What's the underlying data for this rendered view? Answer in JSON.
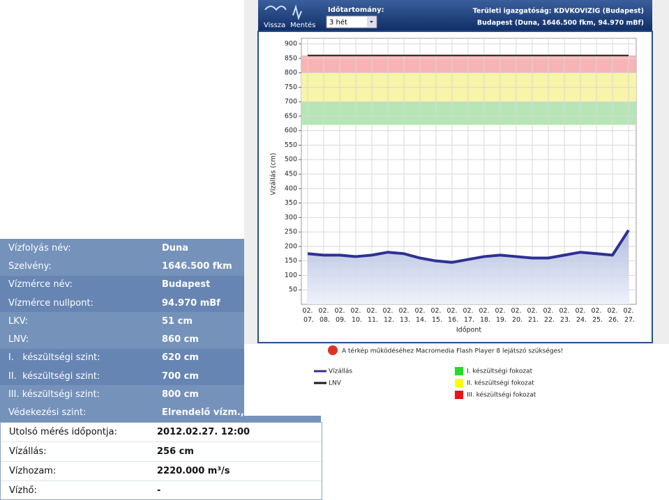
{
  "toolbar": {
    "back": "Vissza",
    "save": "Mentés",
    "range_label": "Időtartomány:",
    "range_value": "3 hét",
    "directorate": "Területi igazgatóság: KDVKOVIZIG (Budapest)",
    "station": "Budapest (Duna, 1646.500 fkm, 94.970 mBf)"
  },
  "chart_data": {
    "type": "line",
    "y_label": "Vízállás (cm)",
    "x_label": "Időpont",
    "categories": [
      "02. 07.",
      "02. 08.",
      "02. 09.",
      "02. 10.",
      "02. 11.",
      "02. 12.",
      "02. 13.",
      "02. 14.",
      "02. 15.",
      "02. 16.",
      "02. 17.",
      "02. 18.",
      "02. 19.",
      "02. 20.",
      "02. 21.",
      "02. 22.",
      "02. 23.",
      "02. 24.",
      "02. 25.",
      "02. 26.",
      "02. 27."
    ],
    "series": [
      {
        "name": "Vízállás",
        "color": "#2e3192",
        "values": [
          175,
          170,
          170,
          165,
          170,
          180,
          175,
          160,
          150,
          145,
          155,
          165,
          170,
          165,
          160,
          160,
          170,
          180,
          175,
          170,
          256
        ]
      },
      {
        "name": "LNV",
        "color": "#1a1a1a",
        "values": [
          860,
          860,
          860,
          860,
          860,
          860,
          860,
          860,
          860,
          860,
          860,
          860,
          860,
          860,
          860,
          860,
          860,
          860,
          860,
          860,
          860
        ]
      }
    ],
    "bands": [
      {
        "name": "I. készültségi fokozat",
        "color": "#22dd22",
        "fill": "#b6e6b6",
        "from": 620,
        "to": 700
      },
      {
        "name": "II. készültségi fokozat",
        "color": "#ffff00",
        "fill": "#f8f4a8",
        "from": 700,
        "to": 800
      },
      {
        "name": "III. készültségi fokozat",
        "color": "#ee1111",
        "fill": "#f8b4b4",
        "from": 800,
        "to": 860
      }
    ],
    "ylim": [
      0,
      900
    ],
    "yticks": [
      50,
      100,
      150,
      200,
      250,
      300,
      350,
      400,
      450,
      500,
      550,
      600,
      650,
      700,
      750,
      800,
      850,
      900
    ],
    "grid": true
  },
  "flash_notice": "A térkép működéséhez Macromedia Flash Player 8 lejátszó szükséges!",
  "info_table": {
    "rows": [
      [
        "Vízfolyás név:",
        "Duna"
      ],
      [
        "Szelvény:",
        "1646.500 fkm"
      ],
      [
        "Vízmérce név:",
        "Budapest"
      ],
      [
        "Vízmérce nullpont:",
        "94.970 mBf"
      ],
      [
        "LKV:",
        "51 cm"
      ],
      [
        "LNV:",
        "860 cm"
      ],
      [
        "I.   készültségi szint:",
        "620 cm"
      ],
      [
        "II.  készültségi szint:",
        "700 cm"
      ],
      [
        "III. készültségi szint:",
        "800 cm"
      ],
      [
        "Védekezési szint:",
        "Elrendelő vízm.,"
      ]
    ]
  },
  "measurement_table": {
    "rows": [
      [
        "Utolsó mérés időpontja:",
        "2012.02.27. 12:00"
      ],
      [
        "Vízállás:",
        "256 cm"
      ],
      [
        "Vízhozam:",
        "2220.000 m³/s"
      ],
      [
        "Vízhő:",
        "-"
      ]
    ]
  }
}
